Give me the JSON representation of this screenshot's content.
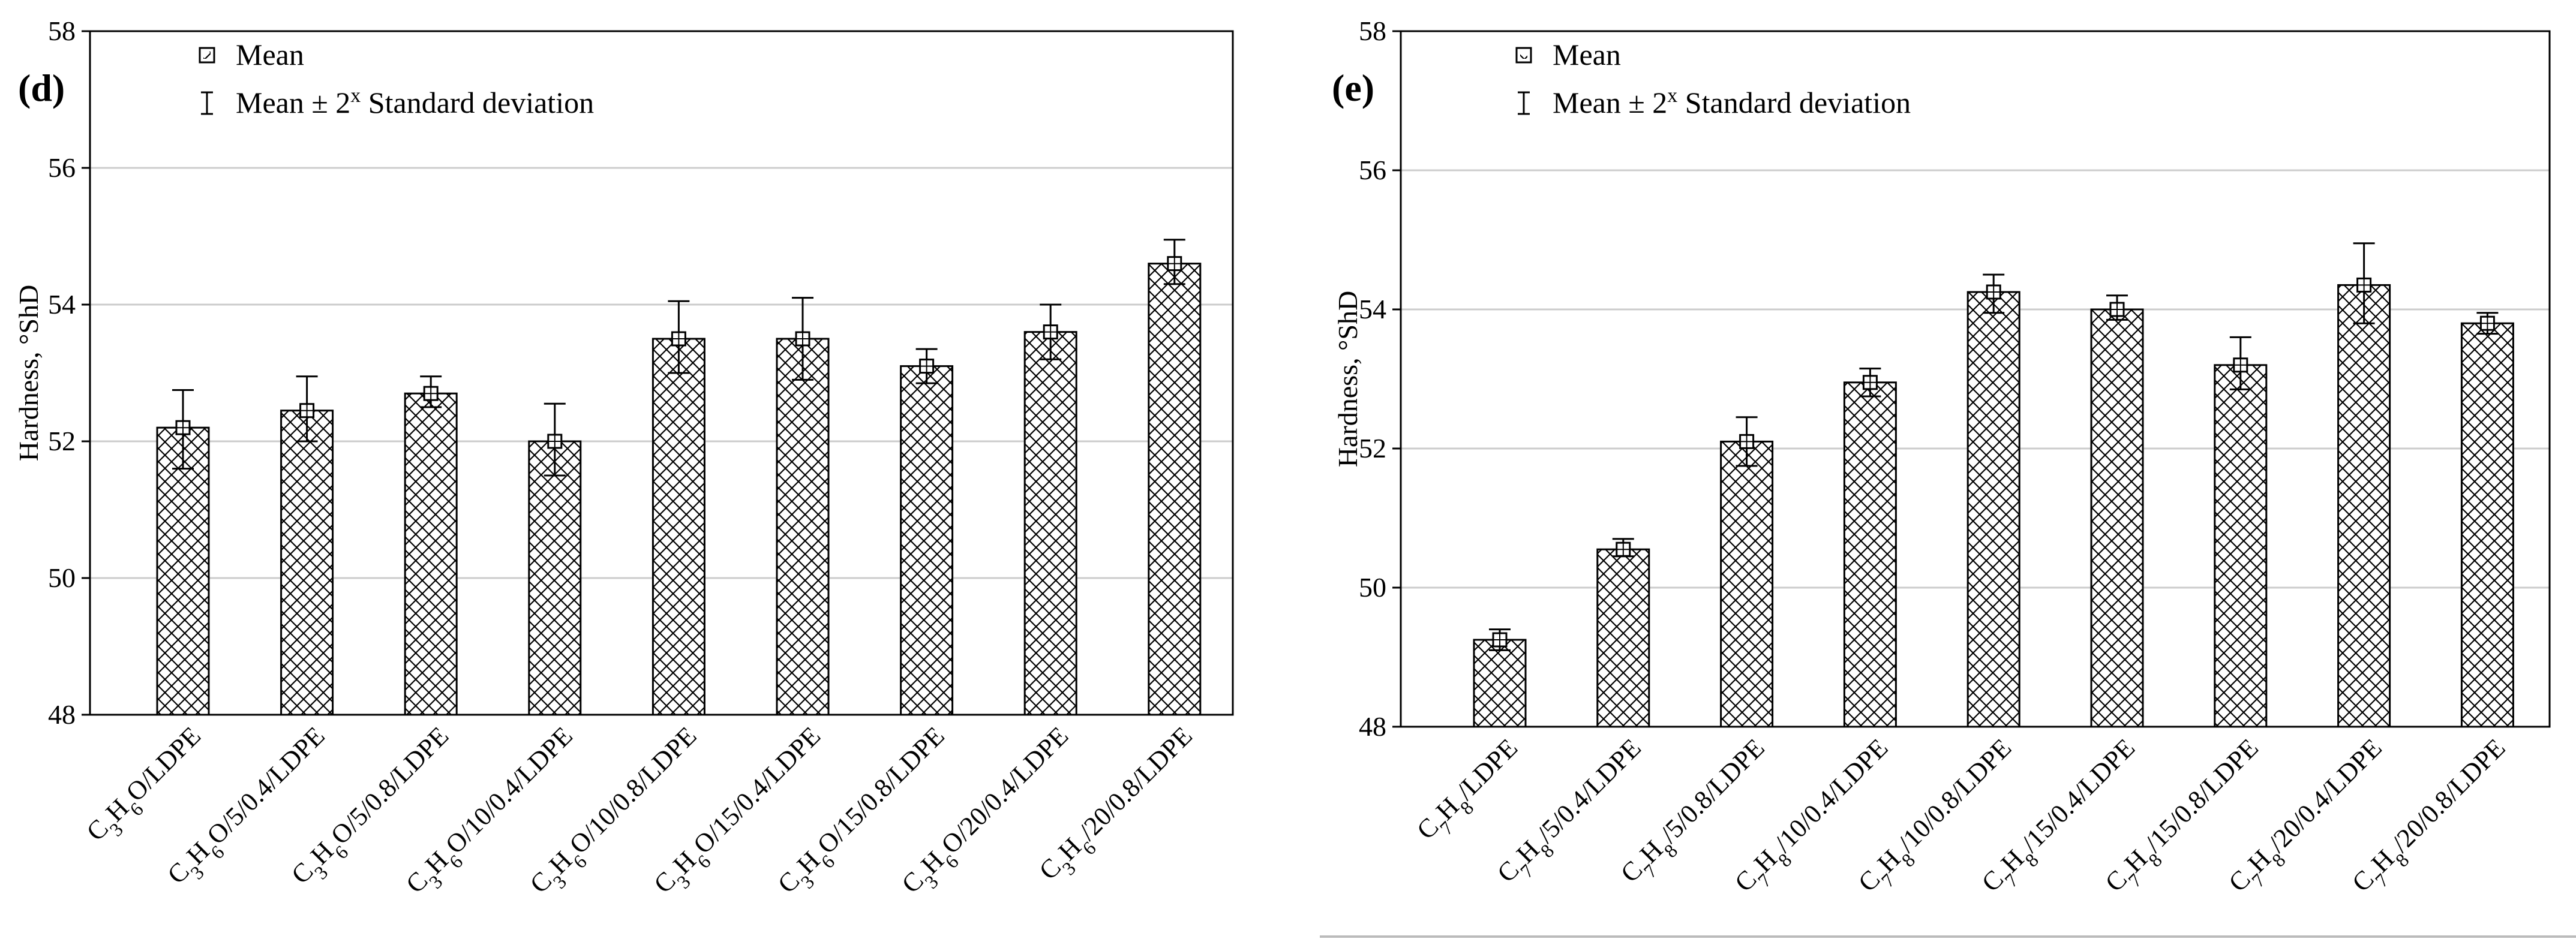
{
  "chart_data": [
    {
      "type": "bar",
      "panel_label": "(d)",
      "ylabel": "Hardness, °ShD",
      "ylim": [
        48,
        58
      ],
      "yticks": [
        "48",
        "50",
        "52",
        "54",
        "56",
        "58"
      ],
      "grid": true,
      "legend": {
        "position": "top-left",
        "mean": "Mean",
        "sd_prefix": "Mean ± 2",
        "sd_sup": "x",
        "sd_suffix": " Standard deviation"
      },
      "categories": [
        {
          "parts": [
            [
              "C",
              "n"
            ],
            [
              "3",
              "sub"
            ],
            [
              "H",
              "n"
            ],
            [
              "6",
              "sub"
            ],
            [
              "O/LDPE",
              "n"
            ]
          ]
        },
        {
          "parts": [
            [
              "C",
              "n"
            ],
            [
              "3",
              "sub"
            ],
            [
              "H",
              "n"
            ],
            [
              "6",
              "sub"
            ],
            [
              "O/5/0.4/LDPE",
              "n"
            ]
          ]
        },
        {
          "parts": [
            [
              "C",
              "n"
            ],
            [
              "3",
              "sub"
            ],
            [
              "H",
              "n"
            ],
            [
              "6",
              "sub"
            ],
            [
              "O/5/0.8/LDPE",
              "n"
            ]
          ]
        },
        {
          "parts": [
            [
              "C",
              "n"
            ],
            [
              "3",
              "sub"
            ],
            [
              "H",
              "n"
            ],
            [
              "6",
              "sub"
            ],
            [
              "O/10/0.4/LDPE",
              "n"
            ]
          ]
        },
        {
          "parts": [
            [
              "C",
              "n"
            ],
            [
              "3",
              "sub"
            ],
            [
              "H",
              "n"
            ],
            [
              "6",
              "sub"
            ],
            [
              "O/10/0.8/LDPE",
              "n"
            ]
          ]
        },
        {
          "parts": [
            [
              "C",
              "n"
            ],
            [
              "3",
              "sub"
            ],
            [
              "H",
              "n"
            ],
            [
              "6",
              "sub"
            ],
            [
              "O/15/0.4/LDPE",
              "n"
            ]
          ]
        },
        {
          "parts": [
            [
              "C",
              "n"
            ],
            [
              "3",
              "sub"
            ],
            [
              "H",
              "n"
            ],
            [
              "6",
              "sub"
            ],
            [
              "O/15/0.8/LDPE",
              "n"
            ]
          ]
        },
        {
          "parts": [
            [
              "C",
              "n"
            ],
            [
              "3",
              "sub"
            ],
            [
              "H",
              "n"
            ],
            [
              "6",
              "sub"
            ],
            [
              "O/20/0.4/LDPE",
              "n"
            ]
          ]
        },
        {
          "parts": [
            [
              "C",
              "n"
            ],
            [
              "3",
              "sub"
            ],
            [
              "H",
              "n"
            ],
            [
              "6",
              "sub"
            ],
            [
              "/20/0.8/LDPE",
              "n"
            ]
          ]
        }
      ],
      "values": [
        52.2,
        52.45,
        52.7,
        52.0,
        53.5,
        53.5,
        53.1,
        53.6,
        54.6
      ],
      "err_low": [
        51.6,
        52.0,
        52.5,
        51.5,
        53.0,
        52.9,
        52.85,
        53.2,
        54.3
      ],
      "err_high": [
        52.75,
        52.95,
        52.95,
        52.55,
        54.05,
        54.1,
        53.35,
        54.0,
        54.95
      ]
    },
    {
      "type": "bar",
      "panel_label": "(e)",
      "ylabel": "Hardness, °ShD",
      "ylim": [
        48,
        58
      ],
      "yticks": [
        "48",
        "50",
        "52",
        "54",
        "56",
        "58"
      ],
      "grid": true,
      "legend": {
        "position": "top-left",
        "mean": "Mean",
        "sd_prefix": "Mean ± 2",
        "sd_sup": "x",
        "sd_suffix": " Standard deviation"
      },
      "categories": [
        {
          "parts": [
            [
              "C",
              "n"
            ],
            [
              "7",
              "sub"
            ],
            [
              "H",
              "n"
            ],
            [
              "8",
              "sub"
            ],
            [
              "/LDPE",
              "n"
            ]
          ]
        },
        {
          "parts": [
            [
              "C",
              "n"
            ],
            [
              "7",
              "sub"
            ],
            [
              "H",
              "n"
            ],
            [
              "8",
              "sub"
            ],
            [
              "/5/0.4/LDPE",
              "n"
            ]
          ]
        },
        {
          "parts": [
            [
              "C",
              "n"
            ],
            [
              "7",
              "sub"
            ],
            [
              "H",
              "n"
            ],
            [
              "8",
              "sub"
            ],
            [
              "/5/0.8/LDPE",
              "n"
            ]
          ]
        },
        {
          "parts": [
            [
              "C",
              "n"
            ],
            [
              "7",
              "sub"
            ],
            [
              "H",
              "n"
            ],
            [
              "8",
              "sub"
            ],
            [
              "/10/0.4/LDPE",
              "n"
            ]
          ]
        },
        {
          "parts": [
            [
              "C",
              "n"
            ],
            [
              "7",
              "sub"
            ],
            [
              "H",
              "n"
            ],
            [
              "8",
              "sub"
            ],
            [
              "/10/0.8/LDPE",
              "n"
            ]
          ]
        },
        {
          "parts": [
            [
              "C",
              "n"
            ],
            [
              "7",
              "sub"
            ],
            [
              "H",
              "n"
            ],
            [
              "8",
              "sub"
            ],
            [
              "/15/0.4/LDPE",
              "n"
            ]
          ]
        },
        {
          "parts": [
            [
              "C",
              "n"
            ],
            [
              "7",
              "sub"
            ],
            [
              "H",
              "n"
            ],
            [
              "8",
              "sub"
            ],
            [
              "/15/0.8/LDPE",
              "n"
            ]
          ]
        },
        {
          "parts": [
            [
              "C",
              "n"
            ],
            [
              "7",
              "sub"
            ],
            [
              "H",
              "n"
            ],
            [
              "8",
              "sub"
            ],
            [
              "/20/0.4/LDPE",
              "n"
            ]
          ]
        },
        {
          "parts": [
            [
              "C",
              "n"
            ],
            [
              "7",
              "sub"
            ],
            [
              "H",
              "n"
            ],
            [
              "8",
              "sub"
            ],
            [
              "/20/0.8/LDPE",
              "n"
            ]
          ]
        }
      ],
      "values": [
        49.25,
        50.55,
        52.1,
        52.95,
        54.25,
        54.0,
        53.2,
        54.35,
        53.8
      ],
      "err_low": [
        49.1,
        50.45,
        51.75,
        52.75,
        53.95,
        53.85,
        52.85,
        53.8,
        53.65
      ],
      "err_high": [
        49.4,
        50.7,
        52.45,
        53.15,
        54.5,
        54.2,
        53.6,
        54.95,
        53.95
      ]
    }
  ]
}
